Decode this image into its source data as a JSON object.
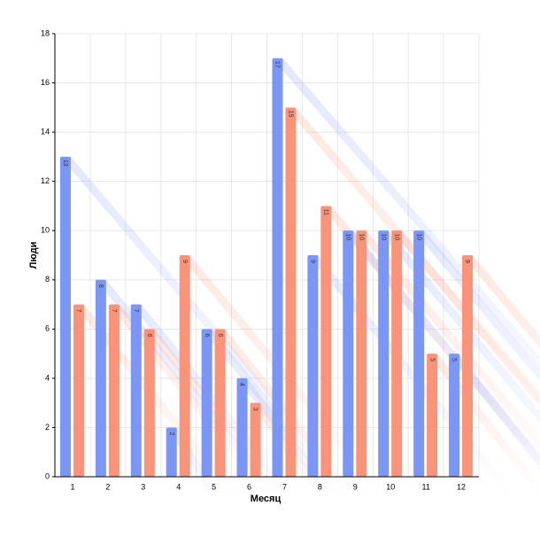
{
  "chart_data": {
    "type": "bar",
    "xlabel": "Месяц",
    "ylabel": "Люди",
    "categories": [
      "1",
      "2",
      "3",
      "4",
      "5",
      "6",
      "7",
      "8",
      "9",
      "10",
      "11",
      "12"
    ],
    "series": [
      {
        "color": "#7b96f5",
        "values": [
          13,
          8,
          7,
          2,
          6,
          4,
          17,
          9,
          10,
          10,
          10,
          5
        ]
      },
      {
        "color": "#f99379",
        "values": [
          7,
          7,
          6,
          9,
          6,
          3,
          15,
          11,
          10,
          10,
          5,
          9
        ]
      }
    ],
    "ylim": [
      0,
      18
    ],
    "yticks": [
      0,
      2,
      4,
      6,
      8,
      10,
      12,
      14,
      16,
      18
    ],
    "grid": true
  }
}
